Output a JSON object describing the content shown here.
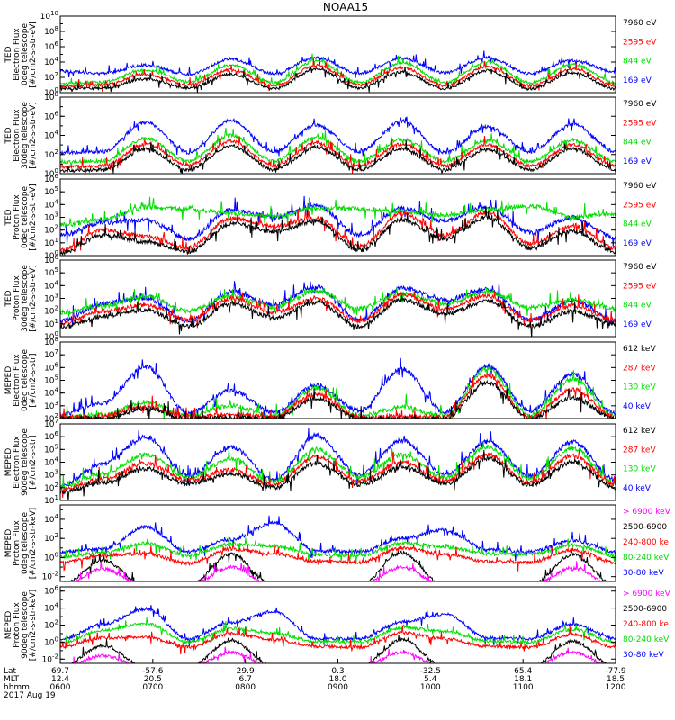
{
  "chart_data": {
    "type": "line",
    "title": "NOAA15",
    "x_axis": {
      "rows": [
        {
          "label": "Lat",
          "values": [
            "69.7",
            "-57.6",
            "29.9",
            "0.3",
            "-32.5",
            "65.4",
            "-77.9"
          ]
        },
        {
          "label": "MLT",
          "values": [
            "12.4",
            "20.5",
            "6.7",
            "18.0",
            "5.4",
            "18.1",
            "18.5"
          ]
        },
        {
          "label": "hhmm",
          "values": [
            "0600",
            "0700",
            "0800",
            "0900",
            "1000",
            "1100",
            "1200"
          ]
        }
      ],
      "date": "2017 Aug 19",
      "range": [
        "0600",
        "1200"
      ]
    },
    "panels": [
      {
        "ylabel": [
          "TED",
          "Electron Flux",
          "0deg telescope",
          "[#/cm2-s-str-eV]"
        ],
        "yticks": [
          "10^0",
          "10^2",
          "10^4",
          "10^6",
          "10^8",
          "10^10"
        ],
        "ylim_log10": [
          0,
          10
        ],
        "series": [
          {
            "name": "7960 eV",
            "color": "#000000",
            "log10_flux_approx": [
              0.5,
              0.6,
              1.8,
              0.6,
              2.4,
              0.5,
              3.1,
              0.6,
              2.7,
              0.5,
              2.9,
              0.5,
              2.6,
              0.5
            ]
          },
          {
            "name": "2595 eV",
            "color": "#ff0000",
            "log10_flux_approx": [
              0.8,
              1.0,
              2.4,
              1.0,
              3.0,
              0.9,
              3.6,
              1.0,
              3.3,
              0.9,
              3.4,
              0.9,
              3.1,
              0.9
            ]
          },
          {
            "name": "844 eV",
            "color": "#00dd00",
            "log10_flux_approx": [
              1.2,
              1.4,
              3.0,
              1.4,
              3.6,
              1.3,
              4.2,
              1.3,
              3.9,
              1.3,
              4.0,
              1.3,
              3.7,
              1.3
            ]
          },
          {
            "name": "169 eV",
            "color": "#0000ff",
            "log10_flux_approx": [
              2.8,
              2.5,
              3.6,
              2.4,
              4.4,
              2.5,
              4.6,
              2.5,
              4.5,
              2.6,
              4.6,
              2.5,
              4.2,
              2.7
            ]
          }
        ]
      },
      {
        "ylabel": [
          "TED",
          "Electron Flux",
          "30deg telescope",
          "[#/cm2-s-str-eV]"
        ],
        "yticks": [
          "10^0",
          "10^2",
          "10^4",
          "10^6",
          "10^8"
        ],
        "ylim_log10": [
          0,
          8
        ],
        "series": [
          {
            "name": "7960 eV",
            "color": "#000000",
            "log10_flux_approx": [
              0.3,
              0.4,
              2.6,
              0.4,
              2.9,
              0.4,
              2.8,
              0.4,
              2.6,
              0.4,
              2.5,
              0.4,
              2.6,
              0.4
            ]
          },
          {
            "name": "2595 eV",
            "color": "#ff0000",
            "log10_flux_approx": [
              0.7,
              0.8,
              3.1,
              0.9,
              3.4,
              0.8,
              3.2,
              0.8,
              3.1,
              0.8,
              3.0,
              0.8,
              3.0,
              0.8
            ]
          },
          {
            "name": "844 eV",
            "color": "#00dd00",
            "log10_flux_approx": [
              1.2,
              1.3,
              3.7,
              1.3,
              4.0,
              1.3,
              3.8,
              1.3,
              3.6,
              1.3,
              3.5,
              1.3,
              3.5,
              1.3
            ]
          },
          {
            "name": "169 eV",
            "color": "#0000ff",
            "log10_flux_approx": [
              2.2,
              2.3,
              5.4,
              2.2,
              5.6,
              2.3,
              5.1,
              2.3,
              5.5,
              2.2,
              4.9,
              2.3,
              5.2,
              2.3
            ]
          }
        ]
      },
      {
        "ylabel": [
          "TED",
          "Proton Flux",
          "0deg telescope",
          "[#/cm2-s-str-eV]"
        ],
        "yticks": [
          "10^0",
          "10^1",
          "10^2",
          "10^3",
          "10^4",
          "10^5",
          "10^6"
        ],
        "ylim_log10": [
          0,
          6
        ],
        "series": [
          {
            "name": "7960 eV",
            "color": "#000000",
            "log10_flux_approx": [
              0.2,
              1.6,
              1.1,
              0.3,
              2.5,
              1.9,
              2.7,
              0.4,
              2.8,
              1.3,
              3.0,
              0.6,
              1.9,
              0.3
            ]
          },
          {
            "name": "2595 eV",
            "color": "#ff0000",
            "log10_flux_approx": [
              0.4,
              2.0,
              1.5,
              0.6,
              2.9,
              2.3,
              3.0,
              0.7,
              3.3,
              1.6,
              3.4,
              0.9,
              2.3,
              0.6
            ]
          },
          {
            "name": "844 eV",
            "color": "#00dd00",
            "log10_flux_approx": [
              2.4,
              2.8,
              3.8,
              3.6,
              3.3,
              3.1,
              3.7,
              3.7,
              3.4,
              3.2,
              3.6,
              3.9,
              3.0,
              3.3
            ]
          },
          {
            "name": "169 eV",
            "color": "#0000ff",
            "log10_flux_approx": [
              1.6,
              2.6,
              2.8,
              1.3,
              3.6,
              3.0,
              3.9,
              1.6,
              3.7,
              2.7,
              3.8,
              1.8,
              3.0,
              1.4
            ]
          }
        ]
      },
      {
        "ylabel": [
          "TED",
          "Proton Flux",
          "30deg telescope",
          "[#/cm2-s-str-eV]"
        ],
        "yticks": [
          "10^0",
          "10^1",
          "10^2",
          "10^3",
          "10^4",
          "10^5",
          "10^6"
        ],
        "ylim_log10": [
          0,
          6
        ],
        "series": [
          {
            "name": "7960 eV",
            "color": "#000000",
            "log10_flux_approx": [
              0.7,
              1.6,
              2.1,
              0.8,
              2.6,
              1.5,
              2.7,
              0.8,
              2.9,
              1.8,
              2.8,
              0.8,
              2.0,
              1.0
            ]
          },
          {
            "name": "2595 eV",
            "color": "#ff0000",
            "log10_flux_approx": [
              1.0,
              2.0,
              2.5,
              1.3,
              3.0,
              1.9,
              3.0,
              1.2,
              3.3,
              2.2,
              3.2,
              1.3,
              2.4,
              1.3
            ]
          },
          {
            "name": "844 eV",
            "color": "#00dd00",
            "log10_flux_approx": [
              1.9,
              2.4,
              3.2,
              2.0,
              3.2,
              2.3,
              3.6,
              2.2,
              3.4,
              2.6,
              3.5,
              2.3,
              2.9,
              2.2
            ]
          },
          {
            "name": "169 eV",
            "color": "#0000ff",
            "log10_flux_approx": [
              1.2,
              2.6,
              3.0,
              1.2,
              3.5,
              2.5,
              3.9,
              1.3,
              3.8,
              2.9,
              3.7,
              1.3,
              2.8,
              1.2
            ]
          }
        ]
      },
      {
        "ylabel": [
          "MEPED",
          "Electron Flux",
          "0deg telescope",
          "[#/cm2-s-str]"
        ],
        "yticks": [
          "10^2",
          "10^3",
          "10^4",
          "10^5",
          "10^6",
          "10^7",
          "10^8"
        ],
        "ylim_log10": [
          2,
          8
        ],
        "series": [
          {
            "name": "612 keV",
            "color": "#000000",
            "log10_flux_approx": [
              2.0,
              2.0,
              2.8,
              2.0,
              2.1,
              2.0,
              3.6,
              2.0,
              2.0,
              2.0,
              4.8,
              2.0,
              3.6,
              2.0
            ]
          },
          {
            "name": "287 keV",
            "color": "#ff0000",
            "log10_flux_approx": [
              2.1,
              2.2,
              2.9,
              2.1,
              2.3,
              2.1,
              3.9,
              2.1,
              2.2,
              2.1,
              5.4,
              2.1,
              4.3,
              2.1
            ]
          },
          {
            "name": "130 keV",
            "color": "#00dd00",
            "log10_flux_approx": [
              2.1,
              2.3,
              3.3,
              2.2,
              3.0,
              2.2,
              4.4,
              2.2,
              2.9,
              2.2,
              5.9,
              2.2,
              5.1,
              2.2
            ]
          },
          {
            "name": "40 keV",
            "color": "#0000ff",
            "log10_flux_approx": [
              2.3,
              3.2,
              6.1,
              2.4,
              4.2,
              2.5,
              4.6,
              2.6,
              5.9,
              2.5,
              6.1,
              2.6,
              5.5,
              2.4
            ]
          }
        ]
      },
      {
        "ylabel": [
          "MEPED",
          "Electron Flux",
          "90deg telescope",
          "[#/cm2-s-str]"
        ],
        "yticks": [
          "10^1",
          "10^2",
          "10^3",
          "10^4",
          "10^5",
          "10^6",
          "10^7"
        ],
        "ylim_log10": [
          1,
          7
        ],
        "series": [
          {
            "name": "612 keV",
            "color": "#000000",
            "log10_flux_approx": [
              1.6,
              2.4,
              3.5,
              2.3,
              3.1,
              2.0,
              3.9,
              2.2,
              3.6,
              2.3,
              4.3,
              2.2,
              4.0,
              2.0
            ]
          },
          {
            "name": "287 keV",
            "color": "#ff0000",
            "log10_flux_approx": [
              1.8,
              2.7,
              3.9,
              2.6,
              3.4,
              2.2,
              4.4,
              2.5,
              4.0,
              2.5,
              4.6,
              2.4,
              4.5,
              2.2
            ]
          },
          {
            "name": "130 keV",
            "color": "#00dd00",
            "log10_flux_approx": [
              2.0,
              3.1,
              4.6,
              2.8,
              4.3,
              2.4,
              5.0,
              2.8,
              4.6,
              2.8,
              5.2,
              2.7,
              5.1,
              2.4
            ]
          },
          {
            "name": "40 keV",
            "color": "#0000ff",
            "log10_flux_approx": [
              2.1,
              3.9,
              6.0,
              2.9,
              5.2,
              2.6,
              6.1,
              3.0,
              5.7,
              3.0,
              5.6,
              2.9,
              5.6,
              2.6
            ]
          }
        ]
      },
      {
        "ylabel": [
          "MEPED",
          "Proton Flux",
          "0deg telescope",
          "[#/cm2-s-str-keV]"
        ],
        "yticks": [
          "10^-2",
          "10^0",
          "10^2",
          "10^4"
        ],
        "ylim_log10": [
          -2.5,
          5.5
        ],
        "series": [
          {
            "name": "> 6900 keV",
            "color": "#ff00ff",
            "log10_flux_approx": [
              -3,
              -1.2,
              -3,
              -3,
              -1.0,
              -3,
              -3,
              -3,
              -1.0,
              -3,
              -3,
              -3,
              -1.1,
              -3
            ]
          },
          {
            "name": "2500-6900",
            "color": "#000000",
            "log10_flux_approx": [
              -3,
              -0.3,
              -3,
              -3,
              0.4,
              -3,
              -3,
              -3,
              0.5,
              -3,
              -3,
              -3,
              0.3,
              -3
            ]
          },
          {
            "name": "240-800 ke",
            "color": "#ff0000",
            "log10_flux_approx": [
              -0.5,
              0.2,
              0.4,
              -0.6,
              0.9,
              0.4,
              -0.4,
              -0.5,
              1.0,
              0.3,
              -0.4,
              -0.5,
              0.8,
              -0.5
            ]
          },
          {
            "name": "80-240 keV",
            "color": "#00dd00",
            "log10_flux_approx": [
              0.1,
              0.5,
              1.5,
              0.2,
              1.4,
              1.2,
              0.3,
              0.2,
              1.5,
              1.1,
              0.4,
              0.3,
              1.3,
              0.2
            ]
          },
          {
            "name": "30-80 keV",
            "color": "#0000ff",
            "log10_flux_approx": [
              0.6,
              0.9,
              3.2,
              0.6,
              1.9,
              3.6,
              0.7,
              0.6,
              2.0,
              2.9,
              0.8,
              0.6,
              1.8,
              0.6
            ]
          }
        ]
      },
      {
        "ylabel": [
          "MEPED",
          "Proton Flux",
          "90deg telescope",
          "[#/cm2-s-str-keV]"
        ],
        "yticks": [
          "10^-2",
          "10^0",
          "10^2",
          "10^4",
          "10^6"
        ],
        "ylim_log10": [
          -2.5,
          6.5
        ],
        "series": [
          {
            "name": "> 6900 keV",
            "color": "#ff00ff",
            "log10_flux_approx": [
              -3,
              -1.6,
              -3,
              -3,
              -1.2,
              -3,
              -3,
              -3,
              -1.2,
              -3,
              -3,
              -3,
              -1.2,
              -3
            ]
          },
          {
            "name": "2500-6900",
            "color": "#000000",
            "log10_flux_approx": [
              -3,
              -0.4,
              -3,
              -3,
              0.2,
              -3,
              -3,
              -3,
              0.3,
              -3,
              -3,
              -3,
              0.1,
              -3
            ]
          },
          {
            "name": "240-800 ke",
            "color": "#ff0000",
            "log10_flux_approx": [
              -0.6,
              0.5,
              0.6,
              -0.6,
              1.0,
              0.3,
              -0.5,
              -0.6,
              1.1,
              0.4,
              -0.5,
              -0.6,
              0.9,
              -0.6
            ]
          },
          {
            "name": "80-240 keV",
            "color": "#00dd00",
            "log10_flux_approx": [
              -0.1,
              1.4,
              2.2,
              0.0,
              1.6,
              1.0,
              0.1,
              0.0,
              1.7,
              1.3,
              0.1,
              0.0,
              1.5,
              0.0
            ]
          },
          {
            "name": "30-80 keV",
            "color": "#0000ff",
            "log10_flux_approx": [
              0.3,
              2.1,
              3.9,
              0.4,
              2.3,
              3.6,
              0.4,
              0.4,
              2.4,
              3.3,
              0.5,
              0.4,
              2.1,
              0.4
            ]
          }
        ]
      }
    ]
  }
}
